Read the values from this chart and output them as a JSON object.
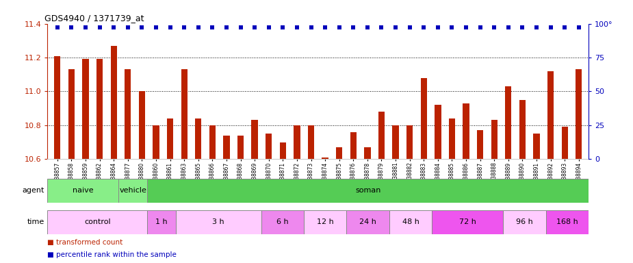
{
  "title": "GDS4940 / 1371739_at",
  "gsm_labels": [
    "GSM338857",
    "GSM338858",
    "GSM338859",
    "GSM338862",
    "GSM338864",
    "GSM338877",
    "GSM338880",
    "GSM338860",
    "GSM338861",
    "GSM338863",
    "GSM338865",
    "GSM338866",
    "GSM338867",
    "GSM338868",
    "GSM338869",
    "GSM338870",
    "GSM338871",
    "GSM338872",
    "GSM338873",
    "GSM338874",
    "GSM338875",
    "GSM338876",
    "GSM338878",
    "GSM338879",
    "GSM338881",
    "GSM338882",
    "GSM338883",
    "GSM338884",
    "GSM338885",
    "GSM338886",
    "GSM338887",
    "GSM338888",
    "GSM338889",
    "GSM338890",
    "GSM338891",
    "GSM338892",
    "GSM338893",
    "GSM338894"
  ],
  "bar_values": [
    11.21,
    11.13,
    11.19,
    11.19,
    11.27,
    11.13,
    11.0,
    10.8,
    10.84,
    11.13,
    10.84,
    10.8,
    10.74,
    10.74,
    10.83,
    10.75,
    10.7,
    10.8,
    10.8,
    10.61,
    10.67,
    10.76,
    10.67,
    10.88,
    10.8,
    10.8,
    11.08,
    10.92,
    10.84,
    10.93,
    10.77,
    10.83,
    11.03,
    10.95,
    10.75,
    11.12,
    10.79,
    11.13
  ],
  "percentile_values": [
    97,
    97,
    97,
    97,
    97,
    97,
    97,
    97,
    97,
    97,
    97,
    97,
    97,
    97,
    97,
    97,
    97,
    97,
    97,
    97,
    97,
    97,
    97,
    97,
    97,
    97,
    97,
    97,
    97,
    97,
    97,
    97,
    97,
    97,
    97,
    97,
    97,
    97
  ],
  "ylim": [
    10.6,
    11.4
  ],
  "yticks_left": [
    10.6,
    10.8,
    11.0,
    11.2,
    11.4
  ],
  "yticks_right": [
    0,
    25,
    50,
    75,
    100
  ],
  "bar_color": "#bb2200",
  "percentile_color": "#0000bb",
  "bg_color": "#ffffff",
  "agent_groups": [
    {
      "label": "naive",
      "color": "#88ee88",
      "start": 0,
      "end": 5
    },
    {
      "label": "vehicle",
      "color": "#88ee88",
      "start": 5,
      "end": 7
    },
    {
      "label": "soman",
      "color": "#55cc55",
      "start": 7,
      "end": 38
    }
  ],
  "time_groups": [
    {
      "label": "control",
      "color": "#ffccff",
      "start": 0,
      "end": 7
    },
    {
      "label": "1 h",
      "color": "#ee88ee",
      "start": 7,
      "end": 9
    },
    {
      "label": "3 h",
      "color": "#ffccff",
      "start": 9,
      "end": 15
    },
    {
      "label": "6 h",
      "color": "#ee88ee",
      "start": 15,
      "end": 18
    },
    {
      "label": "12 h",
      "color": "#ffccff",
      "start": 18,
      "end": 21
    },
    {
      "label": "24 h",
      "color": "#ee88ee",
      "start": 21,
      "end": 24
    },
    {
      "label": "48 h",
      "color": "#ffccff",
      "start": 24,
      "end": 27
    },
    {
      "label": "72 h",
      "color": "#ee55ee",
      "start": 27,
      "end": 32
    },
    {
      "label": "96 h",
      "color": "#ffccff",
      "start": 32,
      "end": 35
    },
    {
      "label": "168 h",
      "color": "#ee55ee",
      "start": 35,
      "end": 38
    }
  ],
  "n_samples": 38
}
